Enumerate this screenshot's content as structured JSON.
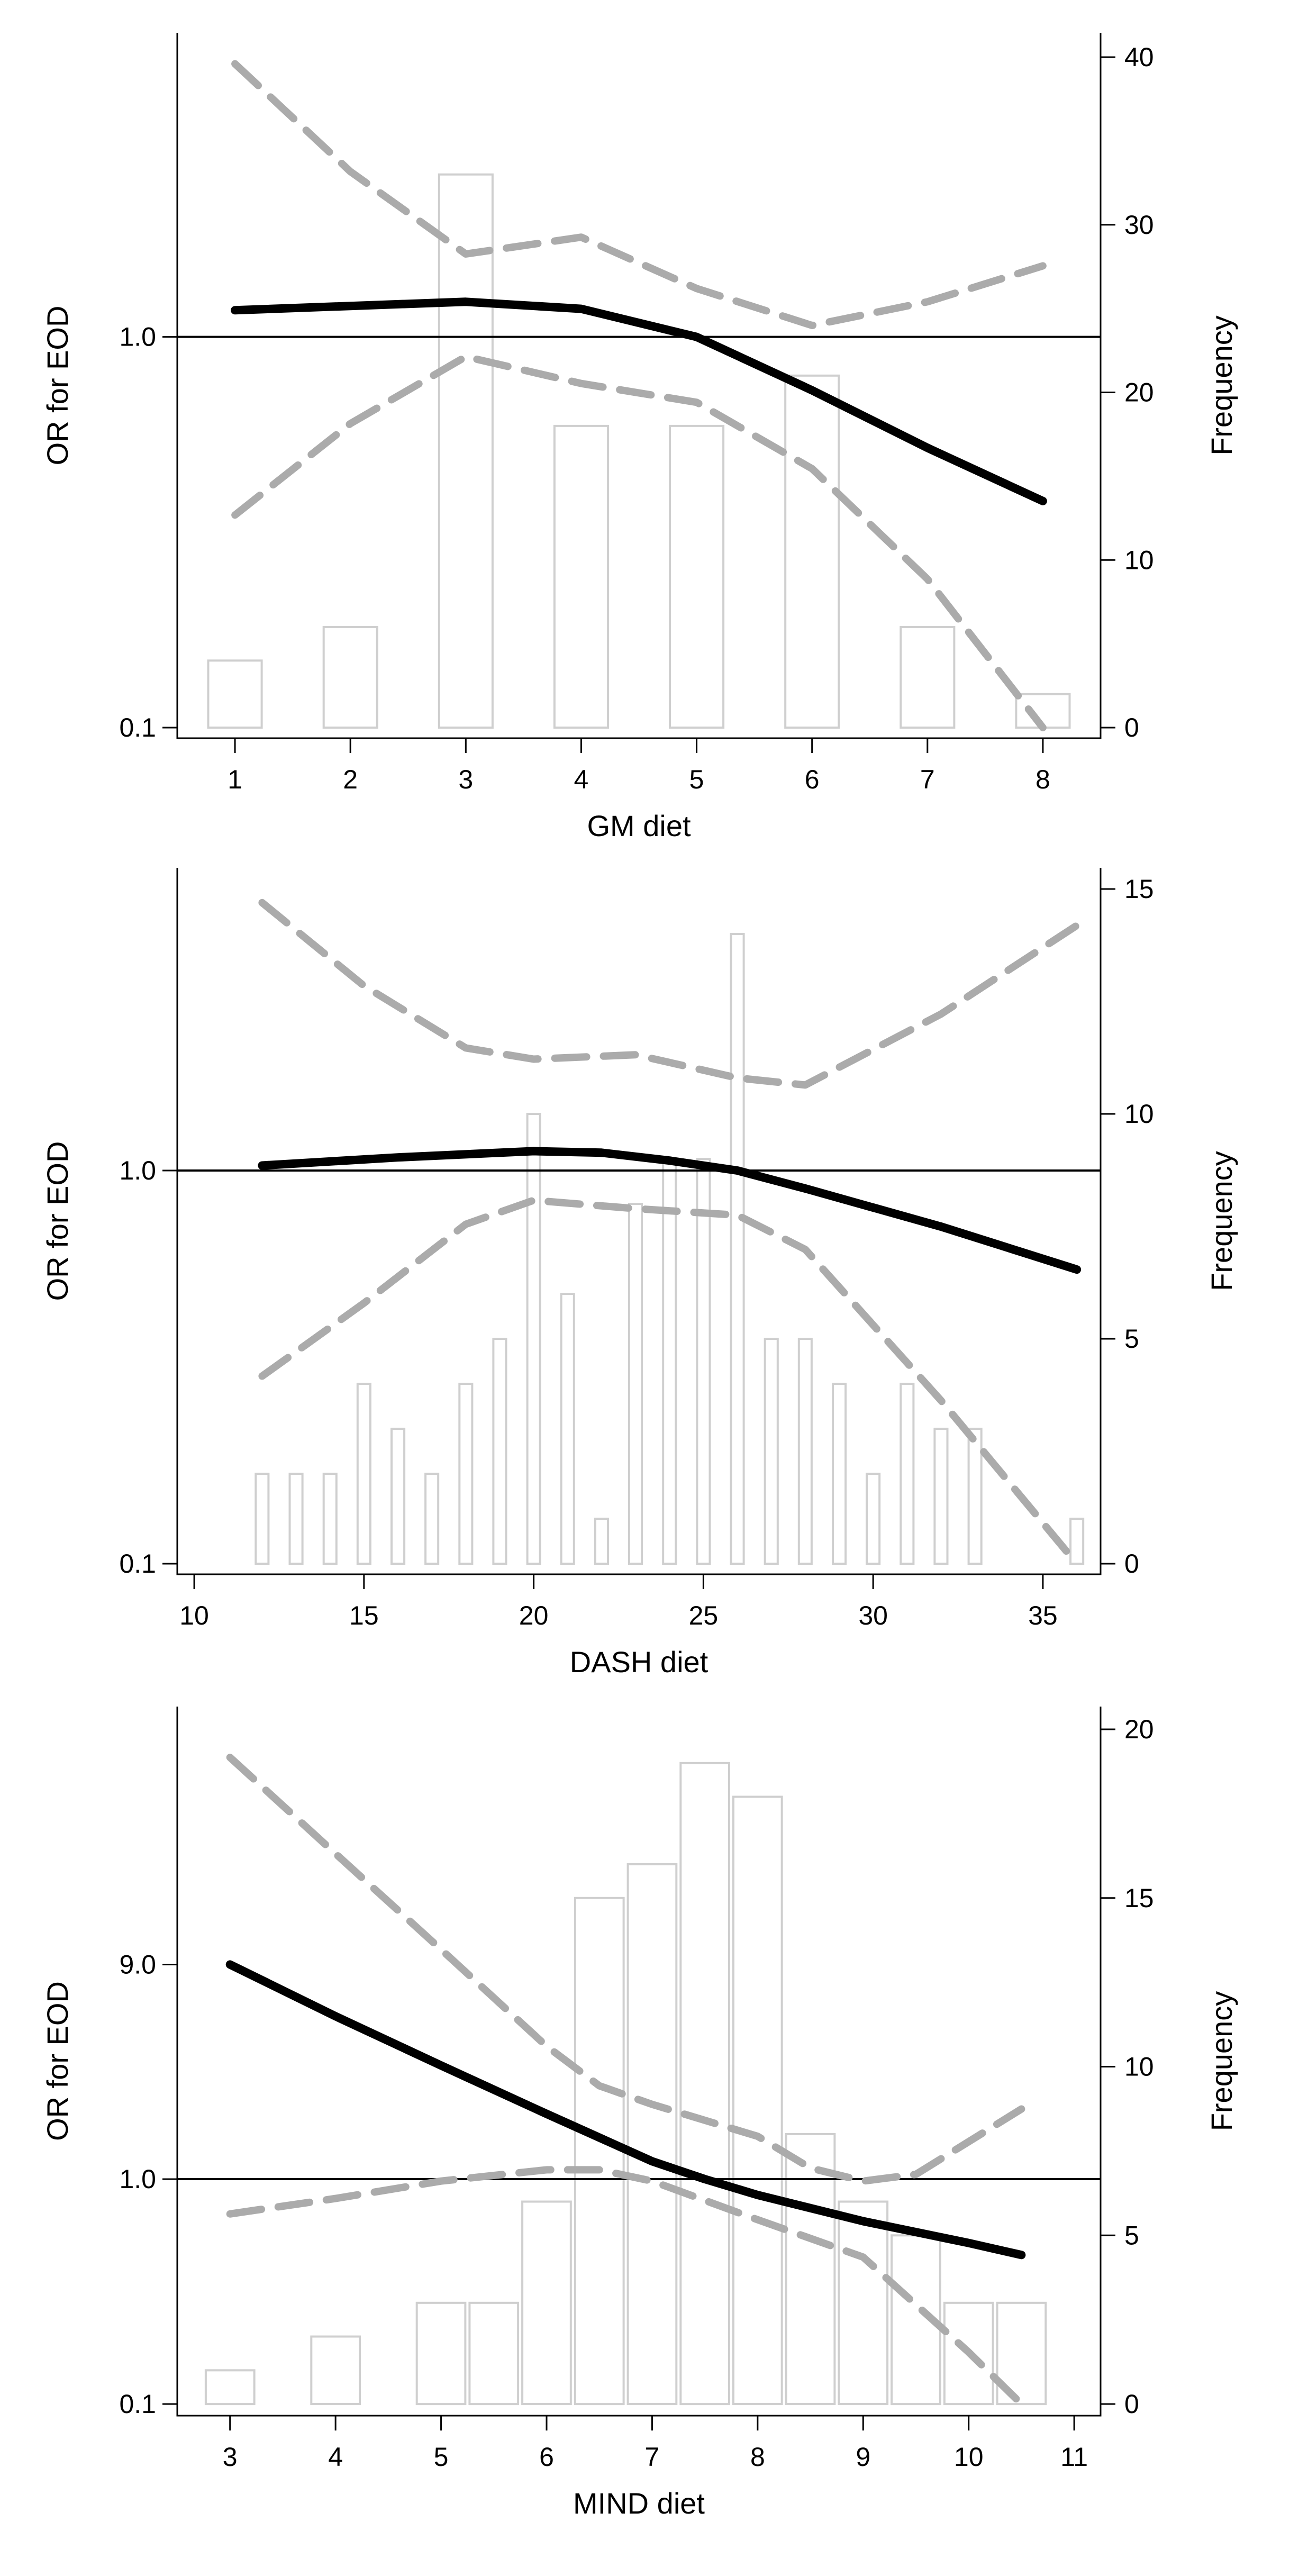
{
  "chart_data": [
    {
      "type": "bar",
      "title": "",
      "xlabel": "GM diet",
      "ylabel_left": "OR for EOD",
      "ylabel_right": "Frequency",
      "x_ticks": [
        1,
        2,
        3,
        4,
        5,
        6,
        7,
        8
      ],
      "xlim": [
        0.5,
        8.5
      ],
      "left_ticks": [
        {
          "value": 0.1,
          "label": "0.1"
        },
        {
          "value": 1.0,
          "label": "1.0"
        }
      ],
      "left_scale": "log",
      "left_range": [
        0.1,
        5.2
      ],
      "right_ticks": [
        0,
        10,
        20,
        30,
        40
      ],
      "right_range": [
        0,
        40
      ],
      "reference_line": 1.0,
      "bin_width": 0.5,
      "histogram": {
        "x": [
          1,
          2,
          3,
          4,
          5,
          6,
          7,
          8
        ],
        "frequency": [
          4,
          6,
          33,
          18,
          18,
          21,
          6,
          2
        ]
      },
      "series": [
        {
          "name": "OR",
          "style": "solid",
          "x": [
            1,
            2,
            3,
            4,
            5,
            6,
            7,
            8
          ],
          "y": [
            1.17,
            1.2,
            1.23,
            1.18,
            1.0,
            0.73,
            0.52,
            0.38
          ]
        },
        {
          "name": "Upper 95% CI",
          "style": "dashed",
          "x": [
            1,
            2,
            3,
            4,
            5,
            6,
            7,
            8
          ],
          "y": [
            5.0,
            2.65,
            1.63,
            1.8,
            1.33,
            1.07,
            1.23,
            1.52
          ]
        },
        {
          "name": "Lower 95% CI",
          "style": "dashed",
          "x": [
            1,
            2,
            3,
            4,
            5,
            6,
            7,
            8
          ],
          "y": [
            0.35,
            0.6,
            0.89,
            0.76,
            0.68,
            0.46,
            0.24,
            0.1
          ]
        }
      ]
    },
    {
      "type": "bar",
      "title": "",
      "xlabel": "DASH diet",
      "ylabel_left": "OR for EOD",
      "ylabel_right": "Frequency",
      "x_ticks": [
        10,
        15,
        20,
        25,
        30,
        35
      ],
      "xlim": [
        9.5,
        36.7
      ],
      "left_ticks": [
        {
          "value": 0.1,
          "label": "0.1"
        },
        {
          "value": 1.0,
          "label": "1.0"
        }
      ],
      "left_scale": "log",
      "left_range": [
        0.1,
        5.2
      ],
      "right_ticks": [
        0,
        5,
        10,
        15
      ],
      "right_range": [
        0,
        15
      ],
      "reference_line": 1.0,
      "bin_width": 0.5,
      "histogram": {
        "x": [
          12,
          13,
          14,
          15,
          16,
          17,
          18,
          19,
          20,
          21,
          22,
          23,
          24,
          25,
          26,
          27,
          28,
          29,
          30,
          31,
          32,
          33,
          36
        ],
        "frequency": [
          2,
          2,
          2,
          4,
          3,
          2,
          4,
          5,
          10,
          6,
          1,
          8,
          9,
          9,
          14,
          5,
          5,
          4,
          2,
          4,
          3,
          3,
          1
        ]
      },
      "series": [
        {
          "name": "OR",
          "style": "solid",
          "x": [
            12,
            16,
            20,
            22,
            24,
            26,
            28,
            32,
            36
          ],
          "y": [
            1.03,
            1.08,
            1.12,
            1.11,
            1.06,
            1.0,
            0.9,
            0.72,
            0.56
          ]
        },
        {
          "name": "Upper 95% CI",
          "style": "dashed",
          "x": [
            12,
            15,
            18,
            20,
            23,
            26,
            28,
            32,
            36
          ],
          "y": [
            4.8,
            2.95,
            2.05,
            1.92,
            1.97,
            1.72,
            1.65,
            2.5,
            4.2
          ]
        },
        {
          "name": "Lower 95% CI",
          "style": "dashed",
          "x": [
            12,
            15,
            18,
            20,
            23,
            26,
            28,
            32,
            36
          ],
          "y": [
            0.3,
            0.46,
            0.73,
            0.84,
            0.8,
            0.77,
            0.63,
            0.26,
            0.1
          ]
        }
      ]
    },
    {
      "type": "bar",
      "title": "",
      "xlabel": "MIND diet",
      "ylabel_left": "OR for EOD",
      "ylabel_right": "Frequency",
      "x_ticks": [
        3,
        4,
        5,
        6,
        7,
        8,
        9,
        10,
        11
      ],
      "xlim": [
        2.5,
        11.25
      ],
      "left_ticks": [
        {
          "value": 0.1,
          "label": "0.1"
        },
        {
          "value": 1.0,
          "label": "1.0"
        },
        {
          "value": 9.0,
          "label": "9.0"
        }
      ],
      "left_scale": "log",
      "left_range": [
        0.1,
        100
      ],
      "right_ticks": [
        0,
        5,
        10,
        15,
        20
      ],
      "right_range": [
        0,
        20
      ],
      "reference_line": 1.0,
      "bin_width": 0.5,
      "histogram": {
        "x": [
          3,
          4,
          5,
          5.5,
          6,
          6.5,
          7,
          7.5,
          8,
          8.5,
          9,
          9.5,
          10,
          10.5
        ],
        "frequency": [
          1,
          2,
          3,
          3,
          6,
          15,
          16,
          19,
          18,
          8,
          6,
          5,
          3,
          3
        ]
      },
      "series": [
        {
          "name": "OR",
          "style": "solid",
          "x": [
            3,
            4,
            5,
            6,
            7,
            7.5,
            8,
            9,
            10,
            10.5
          ],
          "y": [
            9.0,
            5.3,
            3.2,
            1.95,
            1.2,
            1.0,
            0.85,
            0.65,
            0.52,
            0.46
          ]
        },
        {
          "name": "Upper 95% CI",
          "style": "dashed",
          "x": [
            3,
            4,
            5,
            6,
            6.5,
            7,
            8,
            8.5,
            9,
            9.5,
            10.5
          ],
          "y": [
            75,
            28,
            10.5,
            3.9,
            2.6,
            2.15,
            1.55,
            1.12,
            0.98,
            1.05,
            2.05
          ]
        },
        {
          "name": "Lower 95% CI",
          "style": "dashed",
          "x": [
            3,
            4,
            5,
            6,
            6.5,
            7,
            8,
            9,
            10,
            10.5
          ],
          "y": [
            0.7,
            0.82,
            0.98,
            1.1,
            1.1,
            0.98,
            0.66,
            0.45,
            0.17,
            0.1
          ]
        }
      ]
    }
  ]
}
